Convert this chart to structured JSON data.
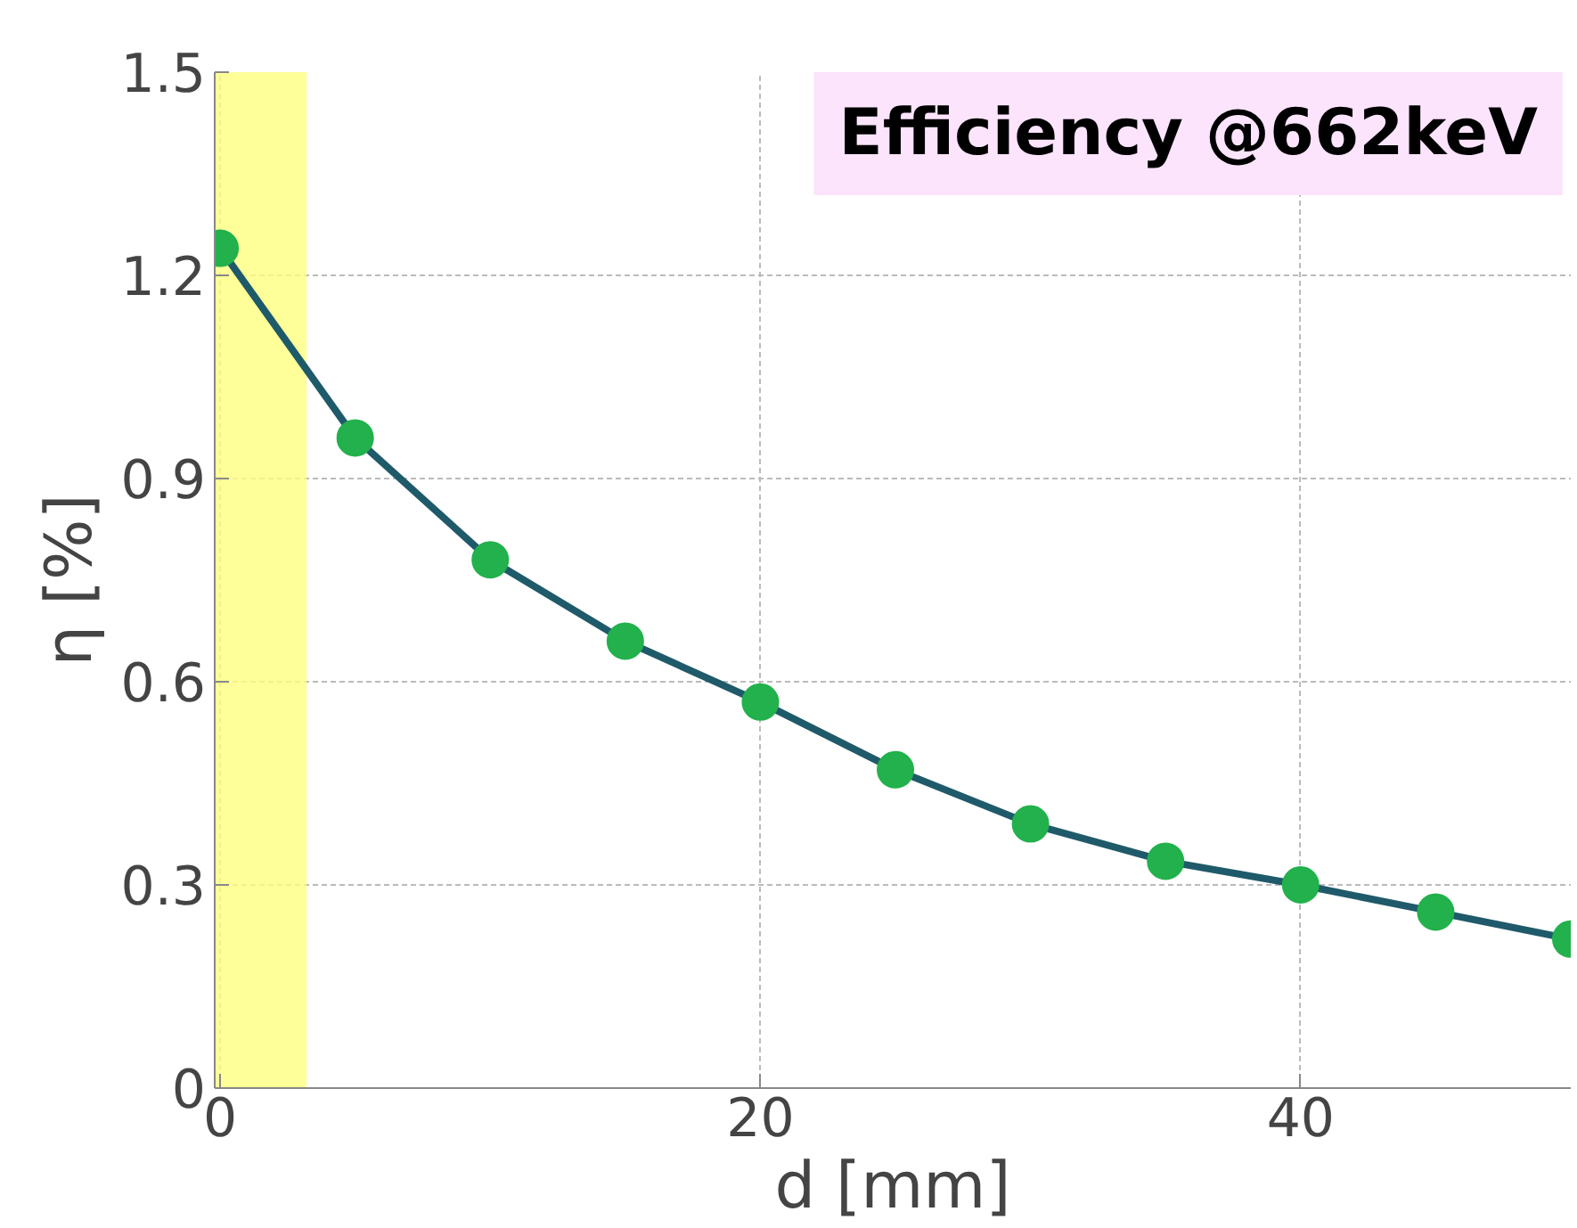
{
  "chart_data": {
    "type": "line",
    "title": "Efficiency @662keV",
    "xlabel": "d [mm]",
    "ylabel": "η [%]",
    "x": [
      0,
      5,
      10,
      15,
      20,
      25,
      30,
      35,
      40,
      45,
      50
    ],
    "series": [
      {
        "color": "#22b14c",
        "values": [
          1.24,
          0.96,
          0.78,
          0.66,
          0.57,
          0.47,
          0.39,
          0.335,
          0.3,
          0.26,
          0.22
        ]
      }
    ],
    "xlim": [
      -0.2,
      50
    ],
    "ylim": [
      0,
      1.5
    ],
    "xticks": [
      0,
      20,
      40
    ],
    "yticks": [
      0,
      0.3,
      0.6,
      0.9,
      1.2,
      1.5
    ],
    "bands": [
      {
        "axis": "x",
        "from": -0.2,
        "to": 3.2,
        "color": "#ffff80"
      }
    ],
    "grid": true,
    "marker": "circle",
    "line_style": "solid"
  }
}
